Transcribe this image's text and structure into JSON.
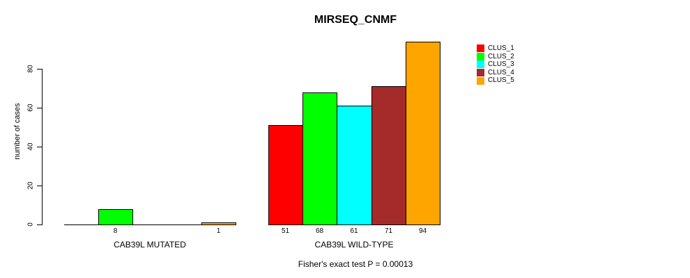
{
  "chart_data": {
    "type": "bar",
    "title": "MIRSEQ_CNMF",
    "ylabel": "number of cases",
    "xlabel": "",
    "yticks": [
      0,
      20,
      40,
      60,
      80
    ],
    "ylim": [
      0,
      97
    ],
    "grid": false,
    "legend_position": "right-outside",
    "annotation": "Fisher's exact test P = 0.00013",
    "series": [
      {
        "name": "CLUS_1",
        "color": "#FF0000"
      },
      {
        "name": "CLUS_2",
        "color": "#00FF00"
      },
      {
        "name": "CLUS_3",
        "color": "#00FFFF"
      },
      {
        "name": "CLUS_4",
        "color": "#A52A2A"
      },
      {
        "name": "CLUS_5",
        "color": "#FFA500"
      }
    ],
    "groups": [
      {
        "label": "CAB39L MUTATED",
        "values": [
          0,
          8,
          0,
          0,
          1
        ]
      },
      {
        "label": "CAB39L WILD-TYPE",
        "values": [
          51,
          68,
          61,
          71,
          94
        ]
      }
    ]
  }
}
